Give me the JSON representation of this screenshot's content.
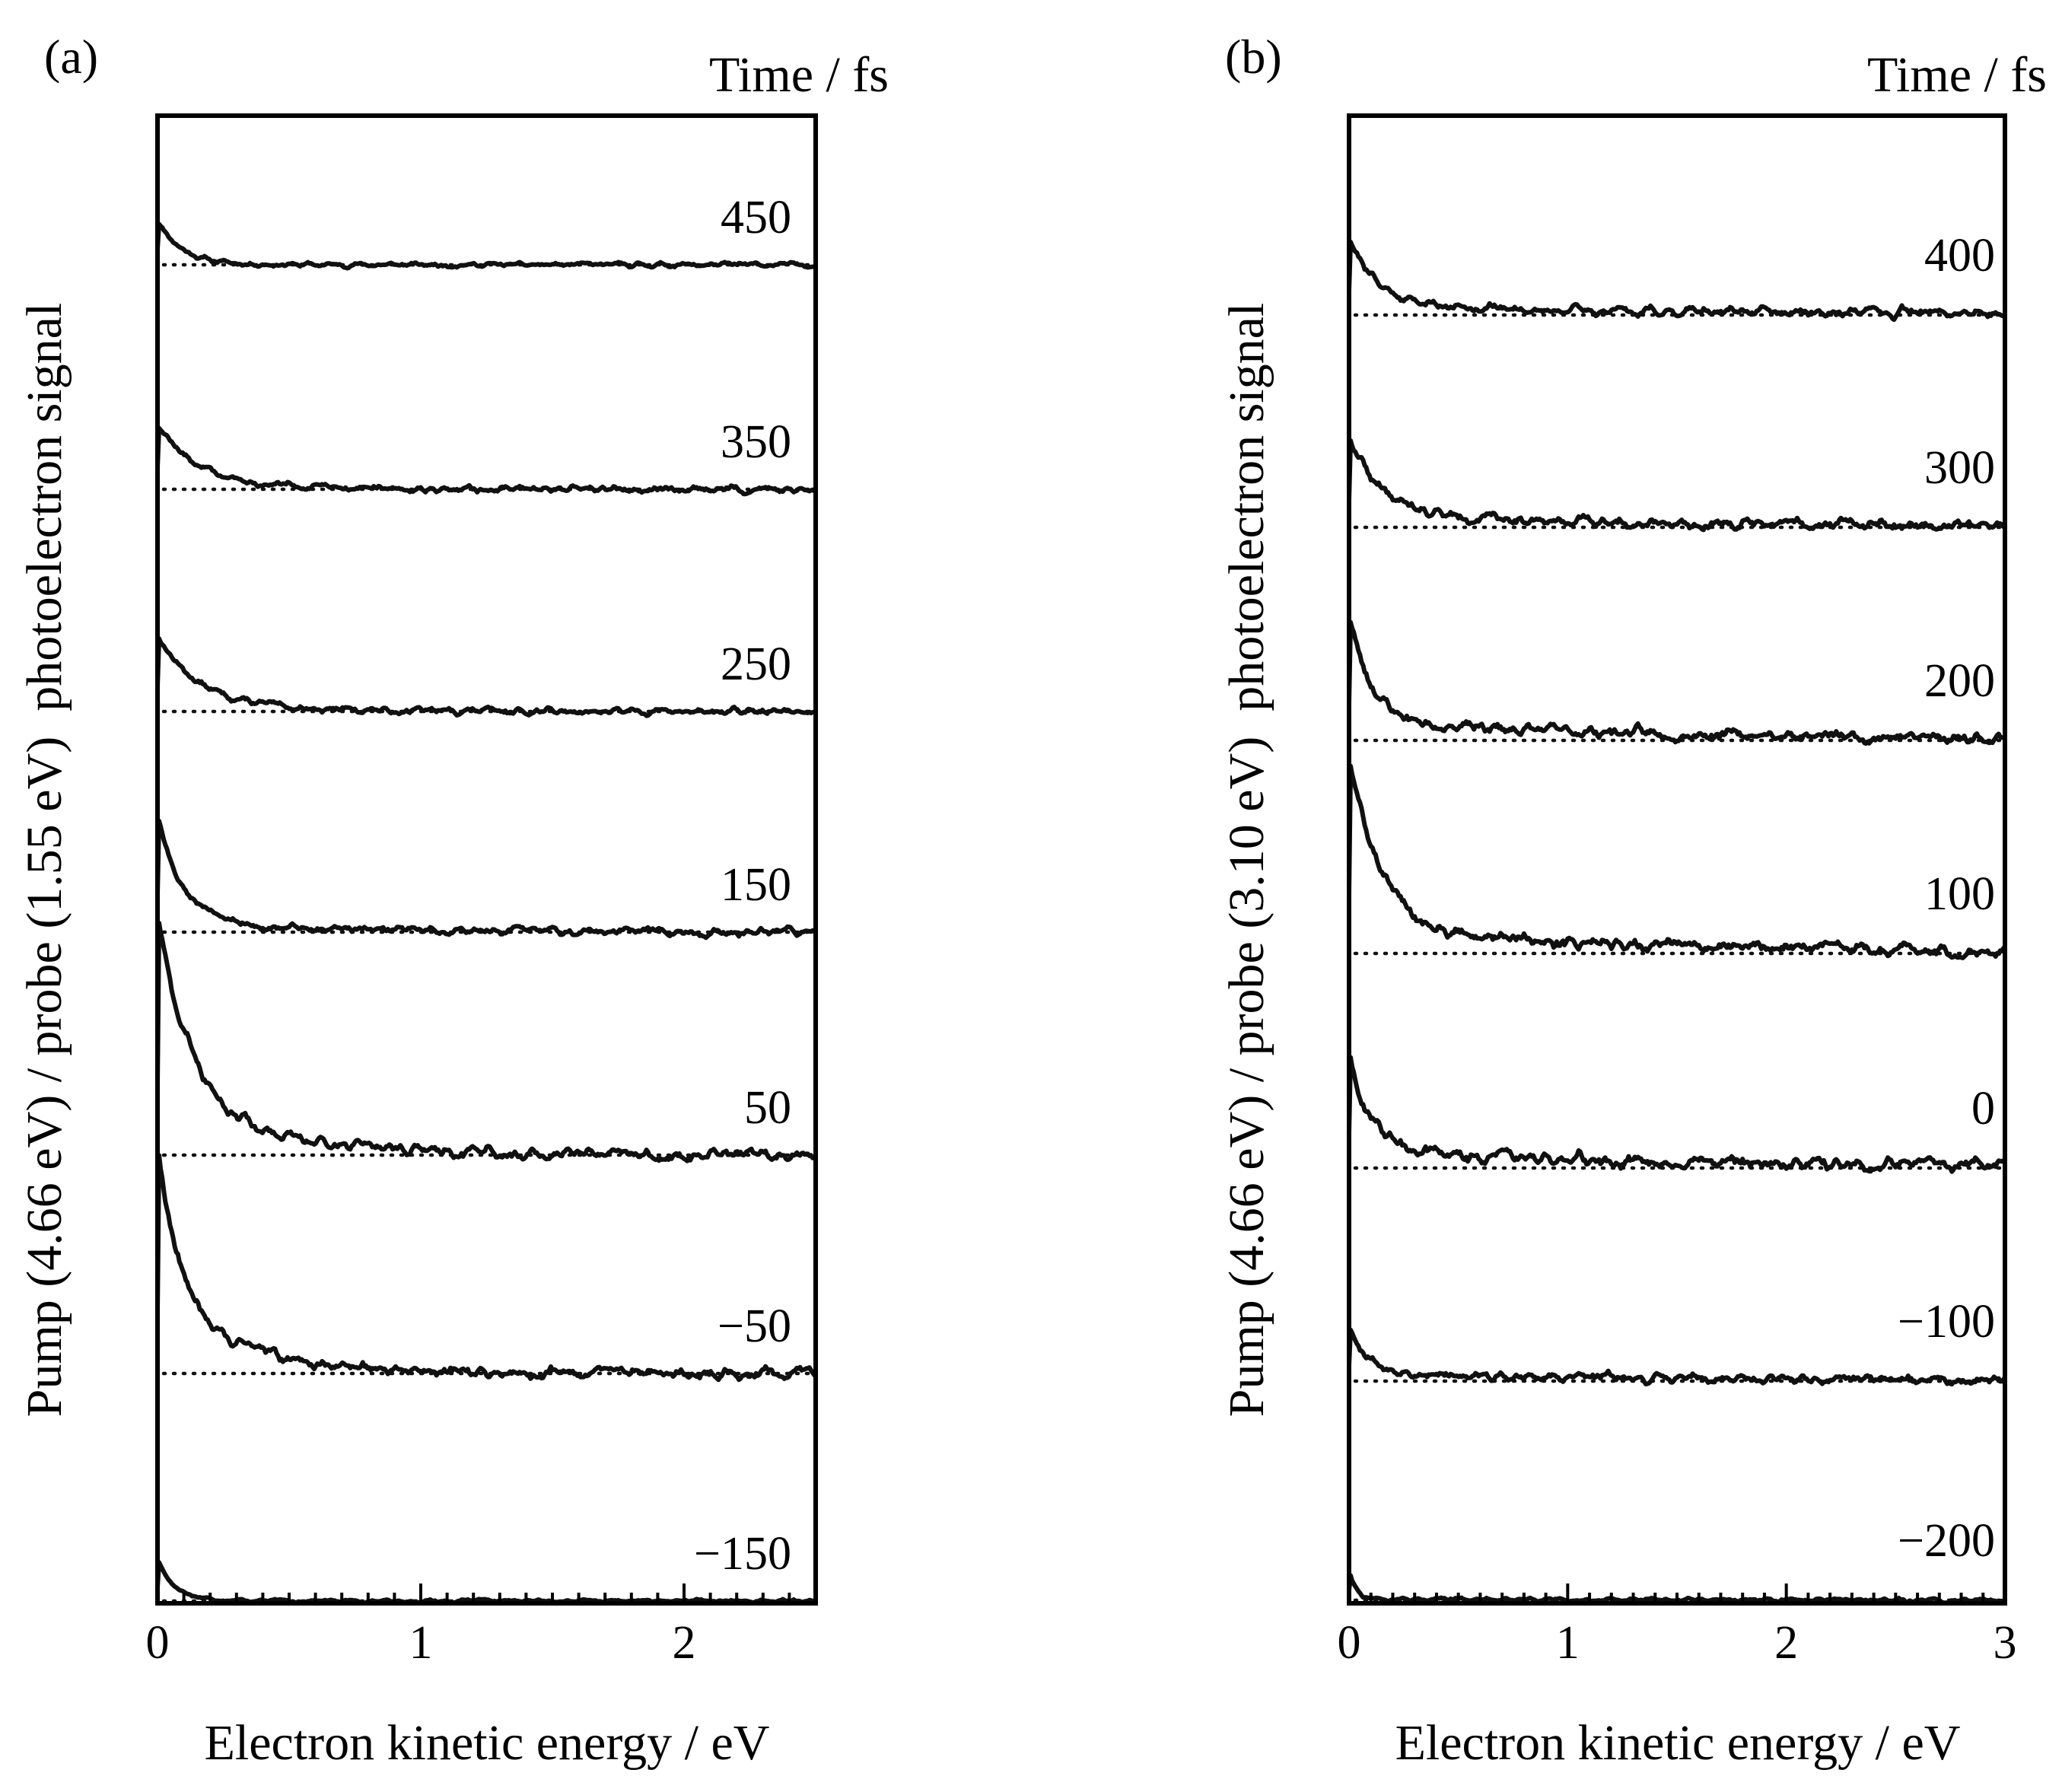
{
  "chart_data": [
    {
      "type": "line",
      "panel_label": "(a)",
      "time_header": "Time / fs",
      "xlabel": "Electron kinetic energy / eV",
      "ylabel": "Pump (4.66 eV) / probe (1.55 eV)  photoelectron signal",
      "xlim": [
        0,
        2.5
      ],
      "xticks": [
        0,
        1,
        2
      ],
      "xtick_labels": [
        "0",
        "1",
        "2"
      ],
      "minor_tick_step": 0.1,
      "curve_shape": "Stacked photoelectron spectra (arbitrary units, vertically offset): sharp peak near 0 eV decaying with noisy oscillations to baseline by ~0.5–1.0 eV; broader decay tails for 50 fs and −50 fs.",
      "series": [
        {
          "name": "450",
          "label": "450",
          "peak": 0.55,
          "decay_eV": 0.09,
          "noise": 0.018,
          "tail_amp": 0.0,
          "tail_decay_eV": 0.5,
          "seed": 11
        },
        {
          "name": "350",
          "label": "350",
          "peak": 0.75,
          "decay_eV": 0.14,
          "noise": 0.025,
          "tail_amp": 0.06,
          "tail_decay_eV": 0.45,
          "seed": 12
        },
        {
          "name": "250",
          "label": "250",
          "peak": 0.85,
          "decay_eV": 0.15,
          "noise": 0.025,
          "tail_amp": 0.07,
          "tail_decay_eV": 0.5,
          "seed": 13
        },
        {
          "name": "150",
          "label": "150",
          "peak": 1.3,
          "decay_eV": 0.09,
          "noise": 0.03,
          "tail_amp": 0.14,
          "tail_decay_eV": 0.55,
          "seed": 14
        },
        {
          "name": "50",
          "label": "50",
          "peak": 2.4,
          "decay_eV": 0.12,
          "noise": 0.045,
          "tail_amp": 0.55,
          "tail_decay_eV": 0.45,
          "seed": 15
        },
        {
          "name": "−50",
          "label": "−50",
          "peak": 2.1,
          "decay_eV": 0.09,
          "noise": 0.045,
          "tail_amp": 0.65,
          "tail_decay_eV": 0.38,
          "seed": 16
        },
        {
          "name": "−150",
          "label": "−150",
          "peak": 0.48,
          "decay_eV": 0.06,
          "noise": 0.012,
          "tail_amp": 0.03,
          "tail_decay_eV": 0.2,
          "seed": 17
        }
      ]
    },
    {
      "type": "line",
      "panel_label": "(b)",
      "time_header": "Time / fs",
      "xlabel": "Electron kinetic energy / eV",
      "ylabel": "Pump (4.66 eV) / probe (3.10 eV)  photoelectron signal",
      "xlim": [
        0,
        3
      ],
      "xticks": [
        0,
        1,
        2,
        3
      ],
      "xtick_labels": [
        "0",
        "1",
        "2",
        "3"
      ],
      "minor_tick_step": 0.1,
      "curve_shape": "Stacked photoelectron spectra (arbitrary units, vertically offset): sharp peak near 0 eV followed by broad noisy structure decaying toward baseline by ~2–3 eV.",
      "series": [
        {
          "name": "400",
          "label": "400",
          "peak": 0.85,
          "decay_eV": 0.12,
          "noise": 0.035,
          "tail_amp": 0.12,
          "tail_decay_eV": 1.6,
          "seed": 21
        },
        {
          "name": "300",
          "label": "300",
          "peak": 0.95,
          "decay_eV": 0.14,
          "noise": 0.04,
          "tail_amp": 0.14,
          "tail_decay_eV": 1.7,
          "seed": 22
        },
        {
          "name": "200",
          "label": "200",
          "peak": 1.3,
          "decay_eV": 0.1,
          "noise": 0.045,
          "tail_amp": 0.22,
          "tail_decay_eV": 1.5,
          "seed": 23
        },
        {
          "name": "100",
          "label": "100",
          "peak": 2.1,
          "decay_eV": 0.14,
          "noise": 0.05,
          "tail_amp": 0.28,
          "tail_decay_eV": 1.4,
          "seed": 24
        },
        {
          "name": "0",
          "label": "0",
          "peak": 1.2,
          "decay_eV": 0.1,
          "noise": 0.05,
          "tail_amp": 0.18,
          "tail_decay_eV": 1.8,
          "seed": 25
        },
        {
          "name": "−100",
          "label": "−100",
          "peak": 0.55,
          "decay_eV": 0.08,
          "noise": 0.035,
          "tail_amp": 0.1,
          "tail_decay_eV": 1.5,
          "seed": 26
        },
        {
          "name": "−200",
          "label": "−200",
          "peak": 0.35,
          "decay_eV": 0.03,
          "noise": 0.015,
          "tail_amp": 0.02,
          "tail_decay_eV": 1.0,
          "seed": 27
        }
      ]
    }
  ]
}
